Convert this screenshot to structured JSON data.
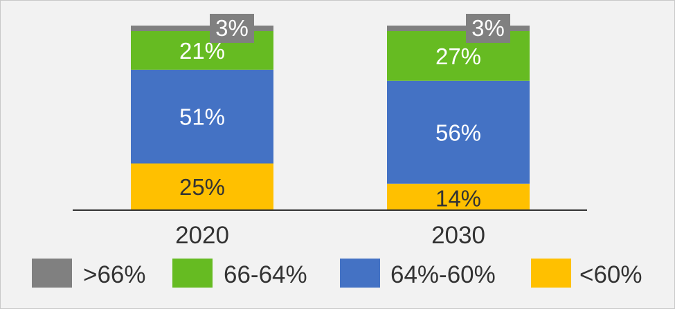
{
  "chart_data": {
    "type": "bar",
    "stacked": true,
    "categories": [
      "2020",
      "2030"
    ],
    "series": [
      {
        "name": "<60%",
        "color": "#ffc000",
        "values": [
          25,
          14
        ],
        "labels": [
          "25%",
          "14%"
        ],
        "label_color": "#333333"
      },
      {
        "name": "64%-60%",
        "color": "#4472c4",
        "values": [
          51,
          56
        ],
        "labels": [
          "51%",
          "56%"
        ],
        "label_color": "#ffffff"
      },
      {
        "name": "66-64%",
        "color": "#66bb22",
        "values": [
          21,
          27
        ],
        "labels": [
          "21%",
          "27%"
        ],
        "label_color": "#ffffff"
      },
      {
        "name": ">66%",
        "color": "#808080",
        "values": [
          3,
          3
        ],
        "labels": [
          "3%",
          "3%"
        ],
        "label_color": "#ffffff"
      }
    ],
    "legend_order": [
      ">66%",
      "66-64%",
      "64%-60%",
      "<60%"
    ],
    "legend_position": "bottom",
    "ylim": [
      0,
      100
    ],
    "grid": false,
    "axis_color": "#333333"
  }
}
